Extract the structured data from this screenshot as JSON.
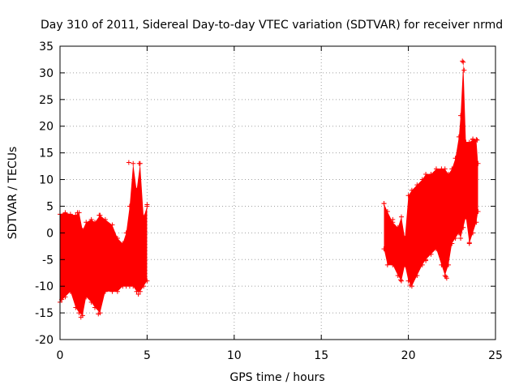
{
  "chart_data": {
    "type": "scatter",
    "title": "Day 310 of 2011, Sidereal Day-to-day VTEC variation (SDTVAR) for receiver nrmd",
    "xlabel": "GPS time / hours",
    "ylabel": "SDTVAR / TECUs",
    "xlim": [
      0,
      25
    ],
    "ylim": [
      -20,
      35
    ],
    "xticks": [
      0,
      5,
      10,
      15,
      20,
      25
    ],
    "yticks": [
      -20,
      -15,
      -10,
      -5,
      0,
      5,
      10,
      15,
      20,
      25,
      30,
      35
    ],
    "xtick_labels": [
      "0",
      "5",
      "10",
      "15",
      "20",
      "25"
    ],
    "ytick_labels": [
      "-20",
      "-15",
      "-10",
      "-5",
      "0",
      "5",
      "10",
      "15",
      "20",
      "25",
      "30",
      "35"
    ],
    "grid": true,
    "marker": "+",
    "color": "#ff0000",
    "series": [
      {
        "name": "SDTVAR",
        "envelope": [
          {
            "x": 0.0,
            "lo": -13,
            "hi": 3.5
          },
          {
            "x": 0.3,
            "lo": -12,
            "hi": 3.8
          },
          {
            "x": 0.6,
            "lo": -11,
            "hi": 3.5
          },
          {
            "x": 0.9,
            "lo": -14,
            "hi": 3.3
          },
          {
            "x": 1.1,
            "lo": -15,
            "hi": 3.8
          },
          {
            "x": 1.3,
            "lo": -15.5,
            "hi": 0.5
          },
          {
            "x": 1.5,
            "lo": -12,
            "hi": 2
          },
          {
            "x": 1.8,
            "lo": -13,
            "hi": 2.5
          },
          {
            "x": 2.0,
            "lo": -14,
            "hi": 2
          },
          {
            "x": 2.3,
            "lo": -15,
            "hi": 3.3
          },
          {
            "x": 2.6,
            "lo": -11,
            "hi": 2.5
          },
          {
            "x": 3.0,
            "lo": -11,
            "hi": 1.5
          },
          {
            "x": 3.3,
            "lo": -11,
            "hi": -1
          },
          {
            "x": 3.6,
            "lo": -10,
            "hi": -2
          },
          {
            "x": 3.8,
            "lo": -10,
            "hi": 0
          },
          {
            "x": 4.0,
            "lo": -10,
            "hi": 5
          },
          {
            "x": 4.2,
            "lo": -10,
            "hi": 13
          },
          {
            "x": 4.4,
            "lo": -11,
            "hi": 8
          },
          {
            "x": 4.6,
            "lo": -11,
            "hi": 13
          },
          {
            "x": 4.8,
            "lo": -10,
            "hi": 3
          },
          {
            "x": 5.0,
            "lo": -9,
            "hi": 5
          },
          {
            "x": 18.6,
            "lo": -3,
            "hi": 5.5
          },
          {
            "x": 18.8,
            "lo": -6,
            "hi": 4
          },
          {
            "x": 19.1,
            "lo": -6,
            "hi": 2
          },
          {
            "x": 19.4,
            "lo": -8,
            "hi": 1
          },
          {
            "x": 19.6,
            "lo": -9,
            "hi": 3
          },
          {
            "x": 19.8,
            "lo": -6,
            "hi": -1
          },
          {
            "x": 20.0,
            "lo": -9,
            "hi": 7
          },
          {
            "x": 20.2,
            "lo": -10,
            "hi": 8
          },
          {
            "x": 20.5,
            "lo": -8,
            "hi": 9
          },
          {
            "x": 20.8,
            "lo": -6,
            "hi": 10
          },
          {
            "x": 21.0,
            "lo": -5,
            "hi": 11
          },
          {
            "x": 21.3,
            "lo": -4,
            "hi": 11
          },
          {
            "x": 21.6,
            "lo": -3,
            "hi": 12
          },
          {
            "x": 21.9,
            "lo": -6,
            "hi": 12
          },
          {
            "x": 22.1,
            "lo": -8,
            "hi": 12
          },
          {
            "x": 22.3,
            "lo": -6,
            "hi": 11
          },
          {
            "x": 22.5,
            "lo": -2,
            "hi": 12
          },
          {
            "x": 22.7,
            "lo": -1,
            "hi": 14
          },
          {
            "x": 22.9,
            "lo": 0,
            "hi": 18
          },
          {
            "x": 23.0,
            "lo": -1,
            "hi": 22
          },
          {
            "x": 23.15,
            "lo": 1,
            "hi": 32
          },
          {
            "x": 23.3,
            "lo": 3,
            "hi": 17
          },
          {
            "x": 23.5,
            "lo": -2,
            "hi": 17
          },
          {
            "x": 23.7,
            "lo": 0,
            "hi": 17.5
          },
          {
            "x": 23.9,
            "lo": 2,
            "hi": 17.5
          },
          {
            "x": 24.0,
            "lo": 4,
            "hi": 13
          }
        ],
        "outliers": [
          {
            "x": 0.1,
            "y": -12.5
          },
          {
            "x": 1.0,
            "y": 3.8
          },
          {
            "x": 1.2,
            "y": -15.8
          },
          {
            "x": 2.25,
            "y": 3.3
          },
          {
            "x": 2.2,
            "y": -15.2
          },
          {
            "x": 3.95,
            "y": 13.2
          },
          {
            "x": 4.55,
            "y": 13.0
          },
          {
            "x": 4.5,
            "y": -11.5
          },
          {
            "x": 5.0,
            "y": 5.3
          },
          {
            "x": 18.6,
            "y": 5.5
          },
          {
            "x": 19.1,
            "y": 2.5
          },
          {
            "x": 19.55,
            "y": -8.8
          },
          {
            "x": 20.1,
            "y": -9.8
          },
          {
            "x": 21.0,
            "y": -5.2
          },
          {
            "x": 22.2,
            "y": -8.5
          },
          {
            "x": 22.15,
            "y": -8.2
          },
          {
            "x": 23.1,
            "y": 32.2
          },
          {
            "x": 23.2,
            "y": 30.5
          },
          {
            "x": 23.5,
            "y": -1.8
          },
          {
            "x": 23.7,
            "y": 17.6
          },
          {
            "x": 23.95,
            "y": 17.4
          }
        ]
      }
    ]
  }
}
